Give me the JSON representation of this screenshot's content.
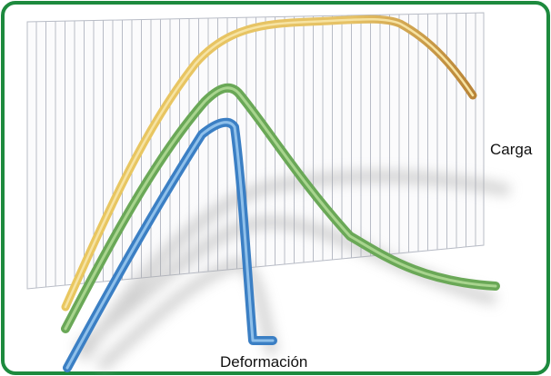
{
  "labels": {
    "load": "Carga",
    "deformation": "Deformación"
  }
}
